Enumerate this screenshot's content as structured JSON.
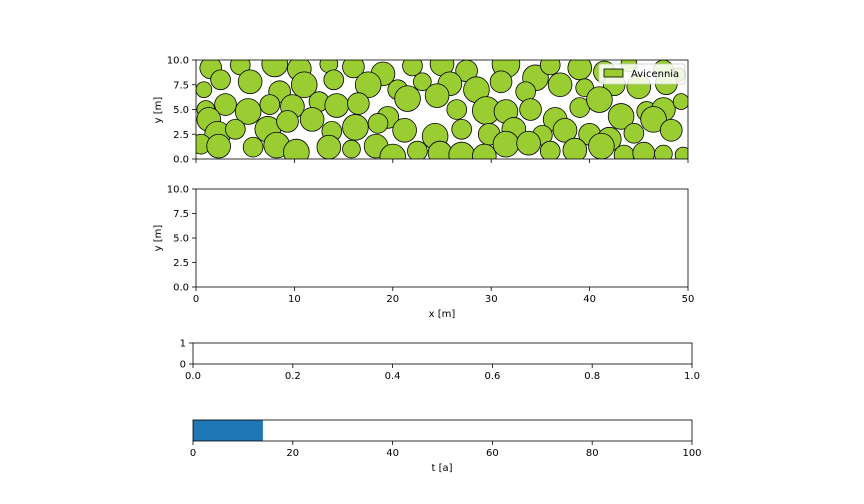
{
  "colors": {
    "tree_fill": "#9acd32",
    "tree_edge": "#000000",
    "progress_fill": "#1f77b4",
    "axes_edge": "#000000",
    "background": "#ffffff"
  },
  "chart_data": [
    {
      "id": "stand_map",
      "type": "scatter",
      "marker": "circle",
      "xlabel": "",
      "ylabel": "y [m]",
      "xlim": [
        0,
        50
      ],
      "ylim": [
        0,
        10
      ],
      "xticks": [
        0,
        10,
        20,
        30,
        40,
        50
      ],
      "xtick_labels_visible": false,
      "yticks": [
        0.0,
        2.5,
        5.0,
        7.5,
        10.0
      ],
      "ytick_labels": [
        "0.0",
        "2.5",
        "5.0",
        "7.5",
        "10.0"
      ],
      "grid": false,
      "legend": {
        "position": "top-right",
        "entries": [
          "Avicennia"
        ]
      },
      "series": [
        {
          "name": "Avicennia",
          "color": "#9acd32",
          "note_radius_units": "m",
          "trees": [
            [
              1.5,
              9.2,
              1.1
            ],
            [
              4.5,
              9.5,
              1.0
            ],
            [
              8.0,
              9.6,
              1.3
            ],
            [
              10.5,
              9.1,
              1.2
            ],
            [
              13.5,
              9.6,
              0.9
            ],
            [
              16.0,
              9.3,
              1.1
            ],
            [
              19.0,
              8.6,
              1.2
            ],
            [
              22.0,
              9.4,
              1.0
            ],
            [
              25.0,
              9.6,
              1.2
            ],
            [
              27.5,
              8.9,
              1.1
            ],
            [
              31.5,
              9.6,
              1.4
            ],
            [
              34.5,
              8.2,
              1.3
            ],
            [
              36.0,
              9.5,
              1.0
            ],
            [
              39.0,
              9.2,
              1.2
            ],
            [
              41.5,
              8.8,
              1.1
            ],
            [
              44.0,
              9.6,
              0.8
            ],
            [
              47.5,
              9.0,
              1.0
            ],
            [
              49.0,
              8.5,
              0.7
            ],
            [
              0.8,
              7.0,
              0.8
            ],
            [
              2.5,
              8.0,
              1.0
            ],
            [
              5.5,
              7.8,
              1.2
            ],
            [
              8.5,
              6.8,
              1.1
            ],
            [
              11.0,
              7.5,
              1.3
            ],
            [
              14.0,
              8.0,
              1.0
            ],
            [
              17.5,
              7.5,
              1.3
            ],
            [
              20.5,
              7.0,
              1.0
            ],
            [
              23.0,
              7.8,
              0.9
            ],
            [
              25.8,
              7.6,
              1.2
            ],
            [
              28.5,
              7.0,
              1.3
            ],
            [
              31.0,
              7.8,
              1.1
            ],
            [
              33.5,
              6.8,
              1.0
            ],
            [
              37.0,
              7.5,
              1.2
            ],
            [
              39.5,
              7.2,
              0.9
            ],
            [
              42.5,
              7.5,
              1.1
            ],
            [
              45.0,
              7.3,
              1.2
            ],
            [
              47.8,
              7.6,
              1.1
            ],
            [
              1.0,
              5.0,
              0.9
            ],
            [
              3.0,
              5.5,
              1.1
            ],
            [
              5.3,
              4.8,
              1.3
            ],
            [
              7.5,
              5.5,
              1.0
            ],
            [
              9.8,
              5.3,
              1.2
            ],
            [
              12.5,
              5.8,
              1.0
            ],
            [
              14.3,
              5.4,
              1.2
            ],
            [
              16.5,
              5.6,
              1.1
            ],
            [
              19.5,
              4.2,
              1.1
            ],
            [
              21.5,
              6.1,
              1.3
            ],
            [
              24.5,
              6.4,
              1.2
            ],
            [
              26.5,
              5.0,
              1.0
            ],
            [
              29.5,
              4.9,
              1.4
            ],
            [
              31.5,
              4.8,
              1.2
            ],
            [
              34.0,
              5.0,
              1.1
            ],
            [
              36.5,
              4.0,
              1.2
            ],
            [
              39.0,
              5.2,
              1.0
            ],
            [
              41.0,
              6.0,
              1.3
            ],
            [
              43.2,
              4.3,
              1.3
            ],
            [
              45.8,
              4.8,
              1.0
            ],
            [
              47.5,
              5.0,
              1.2
            ],
            [
              49.3,
              5.8,
              0.8
            ],
            [
              1.3,
              4.0,
              1.2
            ],
            [
              2.2,
              2.5,
              1.3
            ],
            [
              4.0,
              3.0,
              1.0
            ],
            [
              7.3,
              3.0,
              1.3
            ],
            [
              9.3,
              3.8,
              1.1
            ],
            [
              11.8,
              4.0,
              1.2
            ],
            [
              13.8,
              2.8,
              1.0
            ],
            [
              16.2,
              3.2,
              1.3
            ],
            [
              18.5,
              3.6,
              1.0
            ],
            [
              21.2,
              2.9,
              1.2
            ],
            [
              24.3,
              2.3,
              1.3
            ],
            [
              27.0,
              3.0,
              1.0
            ],
            [
              29.8,
              2.5,
              1.1
            ],
            [
              32.3,
              3.0,
              1.2
            ],
            [
              35.2,
              2.4,
              1.0
            ],
            [
              37.5,
              2.9,
              1.2
            ],
            [
              40.0,
              2.5,
              1.1
            ],
            [
              42.0,
              2.0,
              1.2
            ],
            [
              44.5,
              2.6,
              1.0
            ],
            [
              46.5,
              4.0,
              1.3
            ],
            [
              48.3,
              2.9,
              1.1
            ],
            [
              0.5,
              1.5,
              1.0
            ],
            [
              2.3,
              1.3,
              1.2
            ],
            [
              5.8,
              1.2,
              1.0
            ],
            [
              8.2,
              1.4,
              1.3
            ],
            [
              10.2,
              0.7,
              1.3
            ],
            [
              13.5,
              1.2,
              1.2
            ],
            [
              15.8,
              1.0,
              0.9
            ],
            [
              18.3,
              1.3,
              1.2
            ],
            [
              20.0,
              0.2,
              1.3
            ],
            [
              22.5,
              0.8,
              1.0
            ],
            [
              24.8,
              0.6,
              1.2
            ],
            [
              27.0,
              0.4,
              1.3
            ],
            [
              29.3,
              0.3,
              1.2
            ],
            [
              31.5,
              1.5,
              1.3
            ],
            [
              33.8,
              1.6,
              1.2
            ],
            [
              36.0,
              0.8,
              1.0
            ],
            [
              38.5,
              0.9,
              1.2
            ],
            [
              41.2,
              1.3,
              1.3
            ],
            [
              43.5,
              0.4,
              1.0
            ],
            [
              45.5,
              0.6,
              1.1
            ],
            [
              47.5,
              0.5,
              0.9
            ],
            [
              49.5,
              0.4,
              0.8
            ]
          ]
        }
      ]
    },
    {
      "id": "empty_xy",
      "type": "scatter",
      "xlabel": "x [m]",
      "ylabel": "y [m]",
      "xlim": [
        0,
        50
      ],
      "ylim": [
        0,
        10
      ],
      "xticks": [
        0,
        10,
        20,
        30,
        40,
        50
      ],
      "xtick_labels": [
        "0",
        "10",
        "20",
        "30",
        "40",
        "50"
      ],
      "yticks": [
        0.0,
        2.5,
        5.0,
        7.5,
        10.0
      ],
      "ytick_labels": [
        "0.0",
        "2.5",
        "5.0",
        "7.5",
        "10.0"
      ],
      "grid": false,
      "series": []
    },
    {
      "id": "empty_unit",
      "type": "line",
      "xlabel": "",
      "ylabel": "",
      "xlim": [
        0.0,
        1.0
      ],
      "ylim": [
        0,
        1
      ],
      "xticks": [
        0.0,
        0.2,
        0.4,
        0.6,
        0.8,
        1.0
      ],
      "xtick_labels": [
        "0.0",
        "0.2",
        "0.4",
        "0.6",
        "0.8",
        "1.0"
      ],
      "yticks": [
        0,
        1
      ],
      "ytick_labels": [
        "0",
        "1"
      ],
      "grid": false,
      "series": []
    },
    {
      "id": "time_progress",
      "type": "bar",
      "orientation": "horizontal",
      "xlabel": "t [a]",
      "ylabel": "",
      "xlim": [
        0,
        100
      ],
      "xticks": [
        0,
        20,
        40,
        60,
        80,
        100
      ],
      "xtick_labels": [
        "0",
        "20",
        "40",
        "60",
        "80",
        "100"
      ],
      "yticks": [],
      "grid": false,
      "values": [
        14
      ],
      "color": "#1f77b4"
    }
  ]
}
